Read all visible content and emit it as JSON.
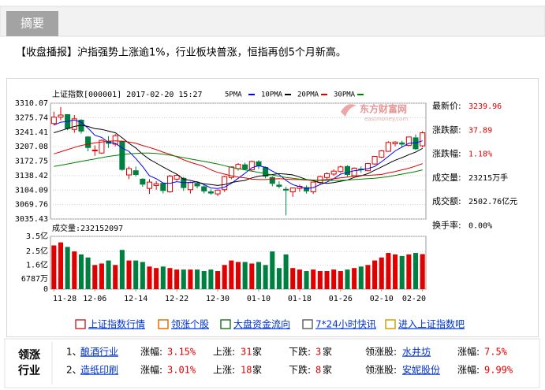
{
  "header": {
    "tab": "摘要",
    "headline": "【收盘播报】沪指强势上涨逾1%，行业板块普涨，恒指再创5个月新高。"
  },
  "watermark": {
    "brand": "东方财富网",
    "site": "eastmoney.com"
  },
  "chart_data": [
    {
      "type": "candlestick",
      "title": "上证指数[000001] 2017-02-20 15:27",
      "up_color": "#e00000",
      "down_color": "#008040",
      "ylim": [
        3035.43,
        3310.07
      ],
      "yticks": [
        3310.07,
        3275.74,
        3241.41,
        3207.08,
        3172.75,
        3138.42,
        3104.09,
        3069.76,
        3035.43
      ],
      "grid": true,
      "open": [
        3262,
        3277,
        3283,
        3248,
        3270,
        3230,
        3198,
        3192,
        3220,
        3213,
        3220,
        3140,
        3150,
        3130,
        3108,
        3115,
        3120,
        3100,
        3130,
        3132,
        3105,
        3120,
        3112,
        3100,
        3095,
        3105,
        3134,
        3155,
        3164,
        3152,
        3171,
        3158,
        3134,
        3116,
        3106,
        3100,
        3108,
        3110,
        3100,
        3122,
        3134,
        3142,
        3148,
        3160,
        3138,
        3154,
        3150,
        3166,
        3182,
        3196,
        3214,
        3216,
        3210,
        3228,
        3209
      ],
      "high": [
        3290,
        3301,
        3284,
        3282,
        3272,
        3232,
        3210,
        3224,
        3232,
        3237,
        3221,
        3160,
        3160,
        3132,
        3130,
        3125,
        3122,
        3140,
        3142,
        3135,
        3124,
        3124,
        3116,
        3106,
        3106,
        3138,
        3160,
        3168,
        3169,
        3174,
        3175,
        3160,
        3137,
        3125,
        3112,
        3110,
        3117,
        3115,
        3124,
        3138,
        3146,
        3153,
        3162,
        3163,
        3158,
        3160,
        3168,
        3185,
        3199,
        3220,
        3220,
        3221,
        3230,
        3236,
        3244
      ],
      "low": [
        3258,
        3270,
        3246,
        3240,
        3238,
        3196,
        3185,
        3190,
        3204,
        3208,
        3150,
        3130,
        3136,
        3112,
        3095,
        3105,
        3096,
        3098,
        3126,
        3102,
        3096,
        3108,
        3096,
        3093,
        3090,
        3100,
        3130,
        3150,
        3151,
        3150,
        3154,
        3132,
        3113,
        3108,
        3044,
        3088,
        3100,
        3096,
        3095,
        3118,
        3130,
        3138,
        3145,
        3136,
        3137,
        3145,
        3149,
        3164,
        3180,
        3195,
        3208,
        3205,
        3208,
        3199,
        3205
      ],
      "close": [
        3277,
        3282,
        3250,
        3273,
        3244,
        3205,
        3199,
        3222,
        3215,
        3233,
        3153,
        3155,
        3141,
        3118,
        3123,
        3119,
        3103,
        3137,
        3139,
        3110,
        3122,
        3114,
        3102,
        3097,
        3104,
        3136,
        3159,
        3165,
        3154,
        3172,
        3161,
        3137,
        3120,
        3113,
        3104,
        3109,
        3113,
        3102,
        3123,
        3136,
        3143,
        3149,
        3159,
        3141,
        3156,
        3153,
        3167,
        3184,
        3197,
        3217,
        3218,
        3213,
        3230,
        3202,
        3239.96
      ],
      "series": [
        {
          "name": "5PMA",
          "color": "#0000ff",
          "values": [
            3258,
            3265,
            3267,
            3270,
            3265,
            3251,
            3234,
            3229,
            3217,
            3215,
            3204,
            3196,
            3179,
            3160,
            3138,
            3131,
            3121,
            3120,
            3124,
            3122,
            3122,
            3124,
            3117,
            3109,
            3108,
            3111,
            3120,
            3132,
            3144,
            3157,
            3162,
            3158,
            3149,
            3141,
            3127,
            3117,
            3112,
            3108,
            3110,
            3117,
            3123,
            3131,
            3142,
            3146,
            3150,
            3152,
            3155,
            3160,
            3171,
            3184,
            3197,
            3206,
            3215,
            3216,
            3221
          ]
        },
        {
          "name": "10PMA",
          "color": "#000000",
          "values": [
            3240,
            3245,
            3250,
            3255,
            3258,
            3255,
            3250,
            3248,
            3244,
            3240,
            3228,
            3215,
            3204,
            3189,
            3177,
            3168,
            3159,
            3150,
            3142,
            3130,
            3127,
            3123,
            3119,
            3117,
            3115,
            3117,
            3122,
            3125,
            3127,
            3133,
            3137,
            3139,
            3141,
            3143,
            3142,
            3140,
            3135,
            3129,
            3126,
            3122,
            3120,
            3122,
            3125,
            3128,
            3134,
            3138,
            3143,
            3151,
            3159,
            3167,
            3175,
            3181,
            3188,
            3194,
            3203
          ]
        },
        {
          "name": "20PMA",
          "color": "#e00000",
          "values": [
            3190,
            3195,
            3200,
            3205,
            3210,
            3213,
            3216,
            3218,
            3220,
            3221,
            3220,
            3218,
            3215,
            3210,
            3205,
            3200,
            3194,
            3189,
            3183,
            3176,
            3170,
            3165,
            3160,
            3152,
            3146,
            3142,
            3138,
            3135,
            3133,
            3130,
            3129,
            3129,
            3130,
            3131,
            3130,
            3129,
            3129,
            3128,
            3127,
            3128,
            3129,
            3131,
            3133,
            3135,
            3137,
            3139,
            3139,
            3140,
            3141,
            3145,
            3148,
            3152,
            3156,
            3161,
            3167
          ]
        },
        {
          "name": "30PMA",
          "color": "#008000",
          "values": [
            3160,
            3163,
            3166,
            3169,
            3172,
            3175,
            3178,
            3181,
            3184,
            3186,
            3188,
            3190,
            3191,
            3192,
            3192,
            3191,
            3189,
            3187,
            3184,
            3181,
            3178,
            3175,
            3172,
            3169,
            3166,
            3162,
            3158,
            3155,
            3152,
            3149,
            3146,
            3143,
            3140,
            3137,
            3134,
            3132,
            3130,
            3129,
            3128,
            3127,
            3127,
            3127,
            3127,
            3128,
            3129,
            3130,
            3131,
            3132,
            3134,
            3136,
            3139,
            3142,
            3145,
            3148,
            3152
          ]
        }
      ]
    },
    {
      "type": "bar",
      "title": "成交量:232152097",
      "x": [
        "11-28",
        null,
        null,
        null,
        null,
        null,
        "12-06",
        null,
        null,
        null,
        null,
        null,
        "12-14",
        null,
        null,
        null,
        null,
        null,
        "12-22",
        null,
        null,
        null,
        null,
        null,
        "12-30",
        null,
        null,
        null,
        null,
        null,
        "01-10",
        null,
        null,
        null,
        null,
        null,
        "01-18",
        null,
        null,
        null,
        null,
        null,
        "01-26",
        null,
        null,
        null,
        null,
        null,
        "02-10",
        null,
        null,
        null,
        null,
        null,
        "02-20"
      ],
      "values": [
        290000000,
        310000000,
        280000000,
        250000000,
        230000000,
        210000000,
        160000000,
        170000000,
        190000000,
        160000000,
        260000000,
        190000000,
        190000000,
        180000000,
        150000000,
        140000000,
        150000000,
        140000000,
        130000000,
        130000000,
        130000000,
        130000000,
        120000000,
        130000000,
        120000000,
        160000000,
        190000000,
        180000000,
        180000000,
        170000000,
        180000000,
        160000000,
        250000000,
        140000000,
        230000000,
        140000000,
        130000000,
        120000000,
        130000000,
        120000000,
        120000000,
        130000000,
        120000000,
        130000000,
        140000000,
        150000000,
        160000000,
        190000000,
        210000000,
        240000000,
        230000000,
        220000000,
        230000000,
        240000000,
        232152097
      ],
      "ylim": [
        0,
        350000000
      ],
      "yticks": [
        {
          "value": 350000000,
          "label": "3.5亿"
        },
        {
          "value": 250000000,
          "label": "2.5亿"
        },
        {
          "value": 160000000,
          "label": "1.6亿"
        },
        {
          "value": 67870000,
          "label": "6787万"
        },
        0
      ],
      "grid": true
    }
  ],
  "quote": [
    {
      "label": "最新价:",
      "value": "3239.96",
      "color": "#e00000"
    },
    {
      "label": "涨跌额:",
      "value": "37.89",
      "color": "#e00000"
    },
    {
      "label": "涨跌幅:",
      "value": "1.18%",
      "color": "#e00000"
    },
    {
      "label": "成交量:",
      "value": "23215万手",
      "color": "#000000"
    },
    {
      "label": "成交额:",
      "value": "2502.76亿元",
      "color": "#000000"
    },
    {
      "label": "换手率:",
      "value": "0.00%",
      "color": "#000000"
    }
  ],
  "links": [
    "上证指数行情",
    "领涨个股",
    "大盘资金流向",
    "7*24小时快讯",
    "进入上证指数吧"
  ],
  "industries": {
    "heading": [
      "领涨",
      "行业"
    ],
    "rows": [
      {
        "index": "1、",
        "name": "酿酒行业",
        "gain_label": "涨幅:",
        "gain": "3.15%",
        "up_label": "上涨:",
        "up": "31",
        "up_unit": "家",
        "down_label": "下跌:",
        "down": "3",
        "down_unit": "家",
        "leader_label": "领涨股:",
        "leader": "水井坊",
        "leader_gain_label": "涨幅:",
        "leader_gain": "7.5%"
      },
      {
        "index": "2、",
        "name": "造纸印刷",
        "gain_label": "涨幅:",
        "gain": "3.01%",
        "up_label": "上涨:",
        "up": "18",
        "up_unit": "家",
        "down_label": "下跌:",
        "down": "8",
        "down_unit": "家",
        "leader_label": "领涨股:",
        "leader": "安妮股份",
        "leader_gain_label": "涨幅:",
        "leader_gain": "9.99%"
      }
    ]
  }
}
